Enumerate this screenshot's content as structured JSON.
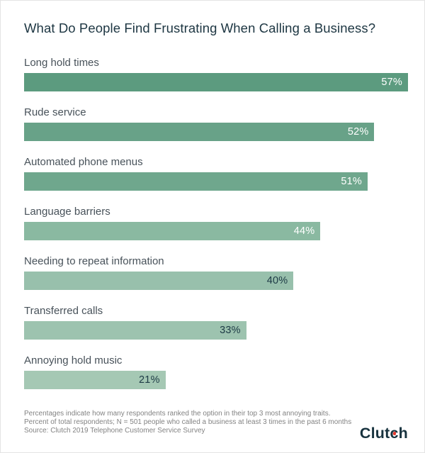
{
  "page": {
    "background": "#ffffff",
    "border_color": "#e4e4e4"
  },
  "title": "What Do People Find Frustrating When Calling a Business?",
  "chart_data": {
    "type": "bar",
    "orientation": "horizontal",
    "title": "What Do People Find Frustrating When Calling a Business?",
    "categories": [
      "Long hold times",
      "Rude service",
      "Automated phone menus",
      "Language barriers",
      "Needing to repeat information",
      "Transferred calls",
      "Annoying hold music"
    ],
    "values": [
      57,
      52,
      51,
      44,
      40,
      33,
      21
    ],
    "value_labels": [
      "57%",
      "52%",
      "51%",
      "44%",
      "40%",
      "33%",
      "21%"
    ],
    "value_suffix": "%",
    "axis_max": 57,
    "grid": false,
    "legend": false,
    "value_labels_inside_bar_right": true,
    "bar_colors": [
      "#5c9b7f",
      "#68a288",
      "#6fa78d",
      "#8ab9a1",
      "#98c0ac",
      "#9dc3af",
      "#a5c8b4"
    ],
    "value_label_colors": [
      "#ffffff",
      "#ffffff",
      "#ffffff",
      "#ffffff",
      "#1d3a45",
      "#1d3a45",
      "#1d3a45"
    ]
  },
  "footer": {
    "lines": [
      "Percentages indicate how many respondents ranked the option in their top 3 most annoying traits.",
      "Percent of total respondents; N = 501 people who called a business at least 3 times in the past 6 months",
      "Source: Clutch 2019 Telephone Customer Service Survey"
    ]
  },
  "logo": {
    "text": "Clutch",
    "pre": "Clut",
    "dot_letter": "c",
    "post": "h",
    "color": "#17323e",
    "dot_color": "#e6382d"
  }
}
